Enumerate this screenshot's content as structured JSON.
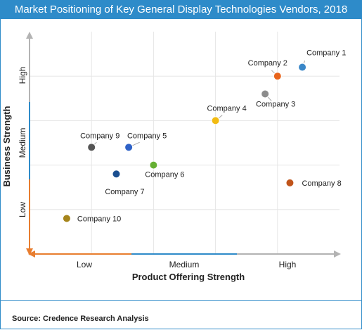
{
  "title": "Market Positioning of Key General Display Technologies Vendors, 2018",
  "source": "Source: Credence Research Analysis",
  "colors": {
    "accent": "#2e8bc9",
    "arrow": "#e87d2f",
    "axis": "#b3b3b3"
  },
  "chart_data": {
    "type": "scatter",
    "title": "Market Positioning of Key General Display Technologies Vendors, 2018",
    "xlabel": "Product Offering Strength",
    "ylabel": "Business Strength",
    "xlim": [
      0,
      5
    ],
    "ylim": [
      0,
      5
    ],
    "x_ticks": [
      "Low",
      "Medium",
      "High"
    ],
    "y_ticks": [
      "Low",
      "Medium",
      "High"
    ],
    "grid": true,
    "points": [
      {
        "name": "Company 1",
        "x": 4.4,
        "y": 4.2,
        "color": "#3a87c8"
      },
      {
        "name": "Company 2",
        "x": 4.0,
        "y": 4.0,
        "color": "#e8641b"
      },
      {
        "name": "Company 3",
        "x": 3.8,
        "y": 3.6,
        "color": "#8c8c8c"
      },
      {
        "name": "Company 4",
        "x": 3.0,
        "y": 3.0,
        "color": "#f2bb12"
      },
      {
        "name": "Company 5",
        "x": 1.6,
        "y": 2.4,
        "color": "#2f62c7"
      },
      {
        "name": "Company 6",
        "x": 2.0,
        "y": 2.0,
        "color": "#66b033"
      },
      {
        "name": "Company 7",
        "x": 1.4,
        "y": 1.8,
        "color": "#1b4f90"
      },
      {
        "name": "Company 8",
        "x": 4.2,
        "y": 1.6,
        "color": "#c0541a"
      },
      {
        "name": "Company 9",
        "x": 1.0,
        "y": 2.4,
        "color": "#555555"
      },
      {
        "name": "Company 10",
        "x": 0.6,
        "y": 0.8,
        "color": "#a6851c"
      }
    ]
  }
}
